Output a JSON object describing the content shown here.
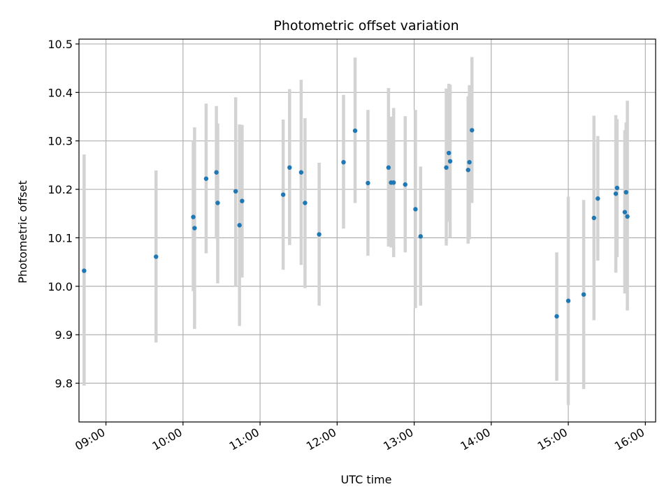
{
  "chart_data": {
    "type": "scatter",
    "title": "Photometric offset variation",
    "xlabel": "UTC time",
    "ylabel": "Photometric offset",
    "grid": true,
    "xlim": [
      "08:39",
      "16:08"
    ],
    "ylim": [
      9.72,
      10.51
    ],
    "x_ticks": [
      "09:00",
      "10:00",
      "11:00",
      "12:00",
      "13:00",
      "14:00",
      "15:00",
      "16:00"
    ],
    "y_ticks": [
      9.8,
      9.9,
      10.0,
      10.1,
      10.2,
      10.3,
      10.4,
      10.5
    ],
    "y_tick_labels": [
      "9.8",
      "9.9",
      "10.0",
      "10.1",
      "10.2",
      "10.3",
      "10.4",
      "10.5"
    ],
    "colors": {
      "point": "#1f77b4",
      "errorbar": "#d3d3d3",
      "grid": "#b0b0b0"
    },
    "points": [
      {
        "time": "08:43",
        "y": 10.032,
        "err_low": 9.795,
        "err_high": 10.272
      },
      {
        "time": "09:39",
        "y": 10.061,
        "err_low": 9.884,
        "err_high": 10.239
      },
      {
        "time": "10:08",
        "y": 10.143,
        "err_low": 9.99,
        "err_high": 10.3
      },
      {
        "time": "10:09",
        "y": 10.12,
        "err_low": 9.912,
        "err_high": 10.328
      },
      {
        "time": "10:18",
        "y": 10.222,
        "err_low": 10.068,
        "err_high": 10.377
      },
      {
        "time": "10:26",
        "y": 10.235,
        "err_low": 10.098,
        "err_high": 10.372
      },
      {
        "time": "10:27",
        "y": 10.172,
        "err_low": 10.006,
        "err_high": 10.336
      },
      {
        "time": "10:41",
        "y": 10.196,
        "err_low": 10.0,
        "err_high": 10.39
      },
      {
        "time": "10:44",
        "y": 10.126,
        "err_low": 9.918,
        "err_high": 10.334
      },
      {
        "time": "10:46",
        "y": 10.176,
        "err_low": 10.018,
        "err_high": 10.333
      },
      {
        "time": "11:18",
        "y": 10.189,
        "err_low": 10.034,
        "err_high": 10.344
      },
      {
        "time": "11:23",
        "y": 10.245,
        "err_low": 10.085,
        "err_high": 10.407
      },
      {
        "time": "11:32",
        "y": 10.235,
        "err_low": 10.044,
        "err_high": 10.426
      },
      {
        "time": "11:35",
        "y": 10.172,
        "err_low": 9.996,
        "err_high": 10.347
      },
      {
        "time": "11:46",
        "y": 10.107,
        "err_low": 9.96,
        "err_high": 10.255
      },
      {
        "time": "12:05",
        "y": 10.256,
        "err_low": 10.119,
        "err_high": 10.395
      },
      {
        "time": "12:14",
        "y": 10.321,
        "err_low": 10.172,
        "err_high": 10.472
      },
      {
        "time": "12:24",
        "y": 10.213,
        "err_low": 10.063,
        "err_high": 10.364
      },
      {
        "time": "12:40",
        "y": 10.245,
        "err_low": 10.082,
        "err_high": 10.409
      },
      {
        "time": "12:42",
        "y": 10.214,
        "err_low": 10.08,
        "err_high": 10.35
      },
      {
        "time": "12:44",
        "y": 10.214,
        "err_low": 10.06,
        "err_high": 10.368
      },
      {
        "time": "12:53",
        "y": 10.21,
        "err_low": 10.07,
        "err_high": 10.351
      },
      {
        "time": "13:01",
        "y": 10.159,
        "err_low": 9.955,
        "err_high": 10.364
      },
      {
        "time": "13:05",
        "y": 10.103,
        "err_low": 9.96,
        "err_high": 10.247
      },
      {
        "time": "13:25",
        "y": 10.245,
        "err_low": 10.084,
        "err_high": 10.408
      },
      {
        "time": "13:27",
        "y": 10.275,
        "err_low": 10.133,
        "err_high": 10.418
      },
      {
        "time": "13:28",
        "y": 10.258,
        "err_low": 10.1,
        "err_high": 10.416
      },
      {
        "time": "13:42",
        "y": 10.24,
        "err_low": 10.088,
        "err_high": 10.392
      },
      {
        "time": "13:43",
        "y": 10.256,
        "err_low": 10.097,
        "err_high": 10.415
      },
      {
        "time": "13:45",
        "y": 10.322,
        "err_low": 10.172,
        "err_high": 10.473
      },
      {
        "time": "14:51",
        "y": 9.938,
        "err_low": 9.805,
        "err_high": 10.07
      },
      {
        "time": "15:00",
        "y": 9.97,
        "err_low": 9.755,
        "err_high": 10.185
      },
      {
        "time": "15:12",
        "y": 9.983,
        "err_low": 9.788,
        "err_high": 10.178
      },
      {
        "time": "15:20",
        "y": 10.141,
        "err_low": 9.93,
        "err_high": 10.352
      },
      {
        "time": "15:23",
        "y": 10.181,
        "err_low": 10.053,
        "err_high": 10.31
      },
      {
        "time": "15:37",
        "y": 10.191,
        "err_low": 10.028,
        "err_high": 10.353
      },
      {
        "time": "15:38",
        "y": 10.203,
        "err_low": 10.06,
        "err_high": 10.345
      },
      {
        "time": "15:44",
        "y": 10.153,
        "err_low": 9.985,
        "err_high": 10.322
      },
      {
        "time": "15:45",
        "y": 10.194,
        "err_low": 10.05,
        "err_high": 10.338
      },
      {
        "time": "15:46",
        "y": 10.144,
        "err_low": 9.95,
        "err_high": 10.383
      }
    ]
  }
}
